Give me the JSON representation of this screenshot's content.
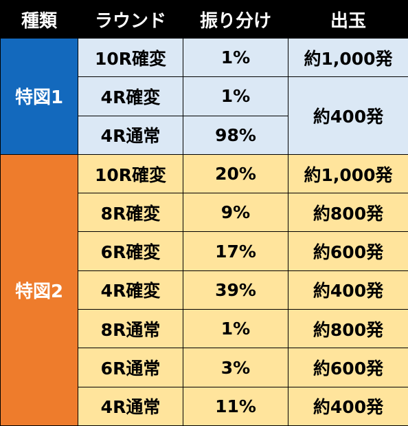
{
  "headers": [
    "種類",
    "ラウンド",
    "振り分け",
    "出玉"
  ],
  "group1": {
    "label": "特図1",
    "rows": [
      {
        "round": "10R確変",
        "ratio": "1%",
        "payout": "約1,000発"
      },
      {
        "round": "4R確変",
        "ratio": "1%",
        "payout": "約400発"
      },
      {
        "round": "4R通常",
        "ratio": "98%"
      }
    ]
  },
  "group2": {
    "label": "特図2",
    "rows": [
      {
        "round": "10R確変",
        "ratio": "20%",
        "payout": "約1,000発"
      },
      {
        "round": "8R確変",
        "ratio": "9%",
        "payout": "約800発"
      },
      {
        "round": "6R確変",
        "ratio": "17%",
        "payout": "約600発"
      },
      {
        "round": "4R確変",
        "ratio": "39%",
        "payout": "約400発"
      },
      {
        "round": "8R通常",
        "ratio": "1%",
        "payout": "約800発"
      },
      {
        "round": "6R通常",
        "ratio": "3%",
        "payout": "約600発"
      },
      {
        "round": "4R通常",
        "ratio": "11%",
        "payout": "約400発"
      }
    ]
  },
  "colors": {
    "header_bg": "#000000",
    "group1_label_bg": "#1369bd",
    "group1_cell_bg": "#dbe8f5",
    "group2_label_bg": "#ee7c2c",
    "group2_cell_bg": "#ffe49c"
  }
}
